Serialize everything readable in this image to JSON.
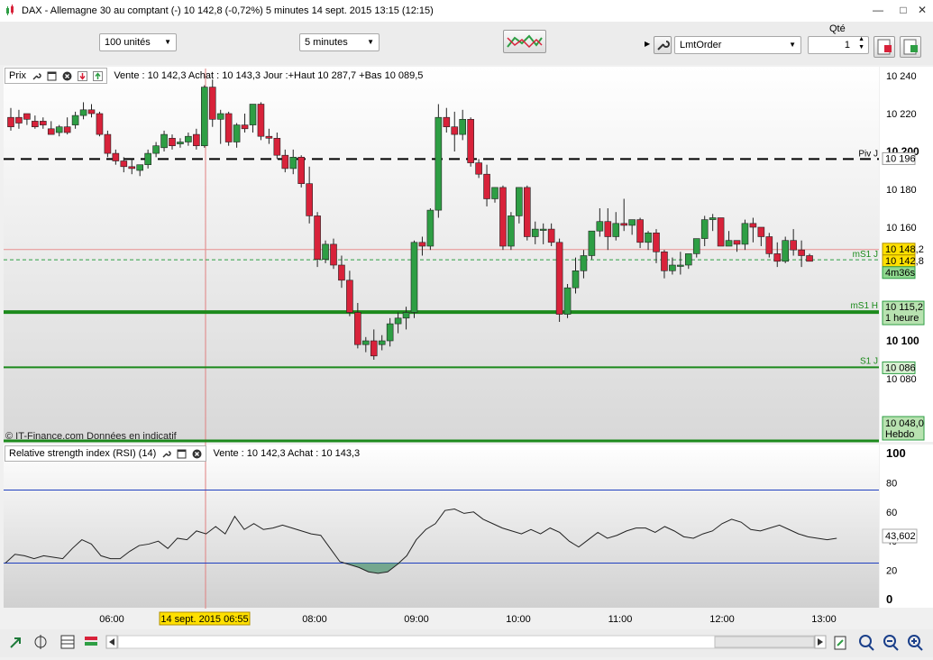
{
  "window": {
    "title": "DAX - Allemagne 30 au comptant (-)    10 142,8 (-0,72%)    5 minutes  14 sept. 2015 13:15 (12:15)"
  },
  "toolbar": {
    "units": "100 unités",
    "period": "5 minutes",
    "qty_label": "Qté",
    "order_type": "LmtOrder",
    "qty_value": "1"
  },
  "price_pane": {
    "tab": "Prix",
    "info": "Vente : 10 142,3 Achat : 10 143,3 Jour :+Haut 10 287,7 +Bas 10 089,5",
    "watermark": "© IT-Finance.com  Données en indicatif",
    "ticks": [
      "10 240",
      "10 220",
      "10 200",
      "10 180",
      "10 160",
      "10 100",
      "10 080"
    ],
    "levels": [
      {
        "name": "Piv J",
        "value_label": "10 196",
        "value": 10196
      },
      {
        "name": "mS1 J",
        "value_label": "10 142,8",
        "value": 10142.8
      },
      {
        "name": "mS1 H",
        "value_label": "10 115,2",
        "sub": "1 heure",
        "value": 10115.2
      },
      {
        "name": "S1 J",
        "value_label": "10 086",
        "value": 10086
      }
    ],
    "last_price": "10 148,2",
    "bid_label": "10 142,8",
    "countdown": "4m36s",
    "weekly": {
      "value_label": "10 048,0",
      "sub": "Hebdo",
      "value": 10048
    }
  },
  "rsi_pane": {
    "title": "Relative strength index (RSI) (14)",
    "info": "Vente : 10 142,3 Achat : 10 143,3",
    "ticks": [
      "100",
      "80",
      "60",
      "40",
      "20",
      "0"
    ],
    "value": "43,602"
  },
  "time_axis": {
    "labels": [
      "06:00",
      "08:00",
      "09:00",
      "10:00",
      "11:00",
      "12:00",
      "13:00"
    ],
    "cursor_label": "14 sept. 2015 06:55"
  },
  "colors": {
    "up": "#2e9e44",
    "down": "#d8223a",
    "level": "#1c8a1c",
    "rsi_band": "#2040c0"
  },
  "chart_data": {
    "type": "candlestick",
    "x_labels": [
      "06:00",
      "08:00",
      "09:00",
      "10:00",
      "11:00",
      "12:00",
      "13:00"
    ],
    "ylim": [
      10040,
      10245
    ],
    "candles": [
      [
        10218,
        10223,
        10213,
        10211
      ],
      [
        10218,
        10222,
        10215,
        10212
      ],
      [
        10220,
        10220,
        10217,
        10214
      ],
      [
        10216,
        10219,
        10213,
        10212
      ],
      [
        10216,
        10218,
        10214,
        10212
      ],
      [
        10212,
        10216,
        10209,
        10209
      ],
      [
        10210,
        10214,
        10213,
        10208
      ],
      [
        10213,
        10218,
        10210,
        10209
      ],
      [
        10214,
        10221,
        10219,
        10212
      ],
      [
        10219,
        10226,
        10222,
        10217
      ],
      [
        10222,
        10225,
        10220,
        10218
      ],
      [
        10220,
        10221,
        10209,
        10208
      ],
      [
        10209,
        10211,
        10199,
        10197
      ],
      [
        10199,
        10201,
        10195,
        10193
      ],
      [
        10195,
        10197,
        10192,
        10189
      ],
      [
        10192,
        10196,
        10191,
        10188
      ],
      [
        10190,
        10193,
        10193,
        10187
      ],
      [
        10193,
        10201,
        10199,
        10191
      ],
      [
        10199,
        10205,
        10203,
        10197
      ],
      [
        10202,
        10211,
        10209,
        10200
      ],
      [
        10207,
        10209,
        10203,
        10201
      ],
      [
        10204,
        10207,
        10205,
        10202
      ],
      [
        10205,
        10210,
        10208,
        10203
      ],
      [
        10209,
        10212,
        10203,
        10201
      ],
      [
        10203,
        10235,
        10234,
        10202
      ],
      [
        10234,
        10238,
        10217,
        10213
      ],
      [
        10217,
        10222,
        10220,
        10204
      ],
      [
        10220,
        10221,
        10205,
        10203
      ],
      [
        10205,
        10215,
        10214,
        10202
      ],
      [
        10214,
        10220,
        10212,
        10210
      ],
      [
        10214,
        10225,
        10225,
        10210
      ],
      [
        10225,
        10226,
        10208,
        10206
      ],
      [
        10208,
        10212,
        10207,
        10204
      ],
      [
        10207,
        10210,
        10198,
        10196
      ],
      [
        10198,
        10201,
        10191,
        10189
      ],
      [
        10191,
        10201,
        10197,
        10188
      ],
      [
        10197,
        10198,
        10183,
        10181
      ],
      [
        10183,
        10192,
        10166,
        10162
      ],
      [
        10166,
        10168,
        10143,
        10139
      ],
      [
        10143,
        10153,
        10151,
        10141
      ],
      [
        10151,
        10154,
        10140,
        10138
      ],
      [
        10140,
        10145,
        10132,
        10128
      ],
      [
        10132,
        10137,
        10115,
        10113
      ],
      [
        10115,
        10120,
        10098,
        10096
      ],
      [
        10098,
        10102,
        10100,
        10094
      ],
      [
        10100,
        10106,
        10092,
        10090
      ],
      [
        10098,
        10103,
        10100,
        10095
      ],
      [
        10100,
        10112,
        10109,
        10097
      ],
      [
        10109,
        10115,
        10112,
        10104
      ],
      [
        10112,
        10118,
        10115,
        10106
      ],
      [
        10115,
        10153,
        10152,
        10112
      ],
      [
        10152,
        10155,
        10150,
        10145
      ],
      [
        10150,
        10170,
        10169,
        10148
      ],
      [
        10169,
        10225,
        10218,
        10165
      ],
      [
        10218,
        10223,
        10213,
        10210
      ],
      [
        10213,
        10221,
        10209,
        10200
      ],
      [
        10209,
        10222,
        10217,
        10206
      ],
      [
        10217,
        10218,
        10194,
        10192
      ],
      [
        10194,
        10196,
        10188,
        10186
      ],
      [
        10188,
        10193,
        10175,
        10171
      ],
      [
        10175,
        10180,
        10181,
        10173
      ],
      [
        10181,
        10182,
        10150,
        10148
      ],
      [
        10150,
        10168,
        10166,
        10148
      ],
      [
        10166,
        10180,
        10181,
        10162
      ],
      [
        10181,
        10182,
        10155,
        10153
      ],
      [
        10155,
        10163,
        10159,
        10151
      ],
      [
        10159,
        10162,
        10159,
        10151
      ],
      [
        10159,
        10162,
        10152,
        10150
      ],
      [
        10152,
        10154,
        10114,
        10110
      ],
      [
        10114,
        10130,
        10128,
        10112
      ],
      [
        10128,
        10144,
        10137,
        10125
      ],
      [
        10137,
        10148,
        10145,
        10133
      ],
      [
        10145,
        10158,
        10158,
        10143
      ],
      [
        10158,
        10170,
        10163,
        10155
      ],
      [
        10163,
        10170,
        10155,
        10148
      ],
      [
        10155,
        10168,
        10162,
        10153
      ],
      [
        10162,
        10175,
        10161,
        10158
      ],
      [
        10161,
        10164,
        10164,
        10156
      ],
      [
        10164,
        10165,
        10152,
        10149
      ],
      [
        10152,
        10158,
        10157,
        10148
      ],
      [
        10157,
        10159,
        10147,
        10141
      ],
      [
        10147,
        10148,
        10137,
        10133
      ],
      [
        10137,
        10144,
        10140,
        10135
      ],
      [
        10140,
        10147,
        10140,
        10135
      ],
      [
        10140,
        10145,
        10146,
        10138
      ],
      [
        10146,
        10150,
        10154,
        10144
      ],
      [
        10154,
        10166,
        10164,
        10150
      ],
      [
        10164,
        10167,
        10165,
        10158
      ],
      [
        10165,
        10165,
        10150,
        10150
      ],
      [
        10150,
        10158,
        10153,
        10150
      ],
      [
        10153,
        10153,
        10151,
        10147
      ],
      [
        10151,
        10164,
        10162,
        10148
      ],
      [
        10162,
        10165,
        10160,
        10152
      ],
      [
        10160,
        10160,
        10155,
        10150
      ],
      [
        10155,
        10157,
        10146,
        10144
      ],
      [
        10146,
        10152,
        10142,
        10139
      ],
      [
        10142,
        10155,
        10153,
        10141
      ],
      [
        10153,
        10159,
        10148,
        10145
      ],
      [
        10148,
        10153,
        10145,
        10139
      ],
      [
        10145,
        10146,
        10142,
        10142
      ]
    ],
    "rsi": [
      25,
      31,
      30,
      28,
      30,
      29,
      28,
      35,
      41,
      38,
      30,
      28,
      28,
      33,
      37,
      38,
      40,
      35,
      42,
      41,
      47,
      45,
      50,
      45,
      57,
      48,
      52,
      48,
      49,
      51,
      49,
      47,
      45,
      44,
      35,
      26,
      24,
      22,
      19,
      18,
      19,
      24,
      30,
      41,
      48,
      52,
      61,
      62,
      59,
      60,
      55,
      52,
      49,
      47,
      45,
      48,
      45,
      49,
      46,
      40,
      36,
      41,
      46,
      42,
      44,
      47,
      49,
      49,
      46,
      50,
      47,
      43,
      42,
      45,
      47,
      52,
      55,
      53,
      48,
      47,
      49,
      51,
      48,
      45,
      43,
      42,
      41,
      42
    ],
    "rsi_ylim": [
      0,
      100
    ],
    "rsi_bands": [
      75,
      25
    ]
  }
}
